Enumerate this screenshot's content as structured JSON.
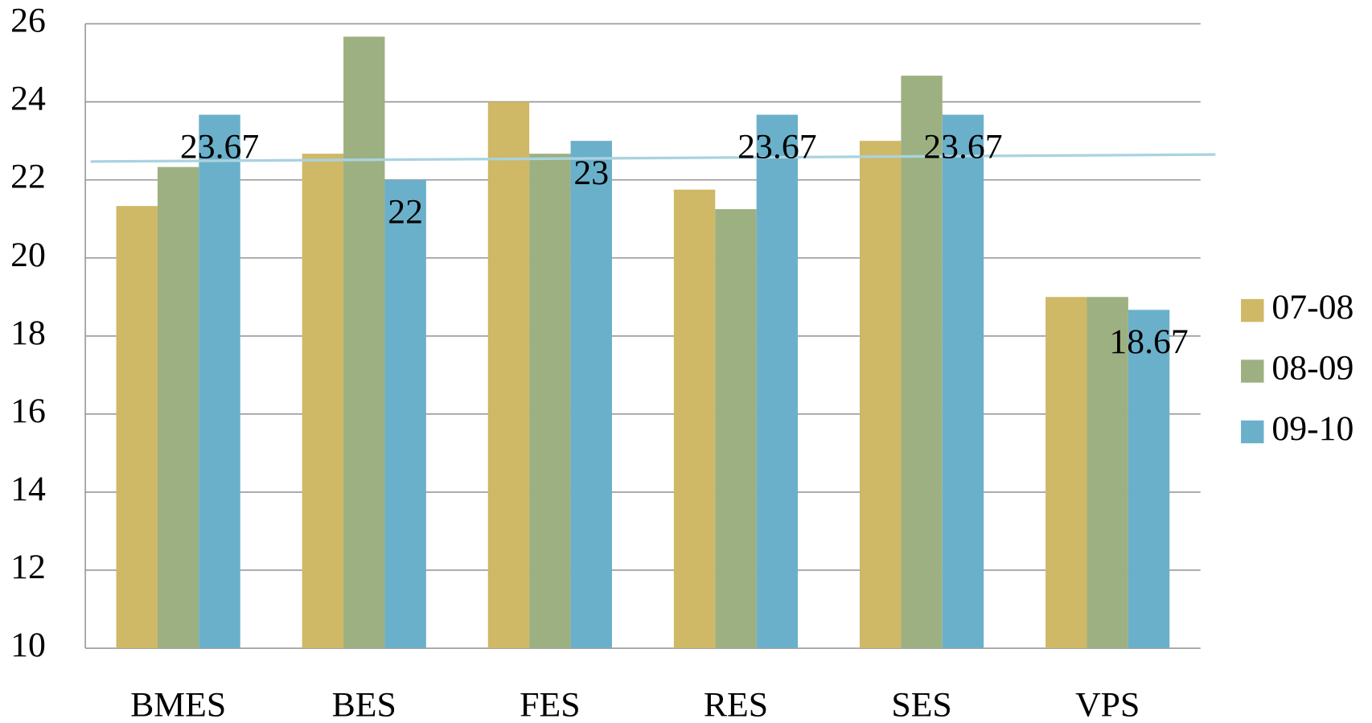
{
  "chart_data": {
    "type": "bar",
    "categories": [
      "BMES",
      "BES",
      "FES",
      "RES",
      "SES",
      "VPS"
    ],
    "series": [
      {
        "name": "07-08",
        "color": "#cfb866",
        "values": [
          21.33,
          22.67,
          24,
          21.75,
          23,
          19
        ]
      },
      {
        "name": "08-09",
        "color": "#9db081",
        "values": [
          22.33,
          25.67,
          22.67,
          21.25,
          24.67,
          19
        ]
      },
      {
        "name": "09-10",
        "color": "#6bb0ca",
        "values": [
          23.67,
          22,
          23,
          23.67,
          23.67,
          18.67
        ],
        "data_labels": true
      }
    ],
    "trendline": {
      "start": 22.47,
      "end": 22.65,
      "color": "#a9d3e0"
    },
    "ylim": [
      10,
      26
    ],
    "yticks": [
      10,
      12,
      14,
      16,
      18,
      20,
      22,
      24,
      26
    ],
    "grid": true,
    "legend": "right"
  }
}
